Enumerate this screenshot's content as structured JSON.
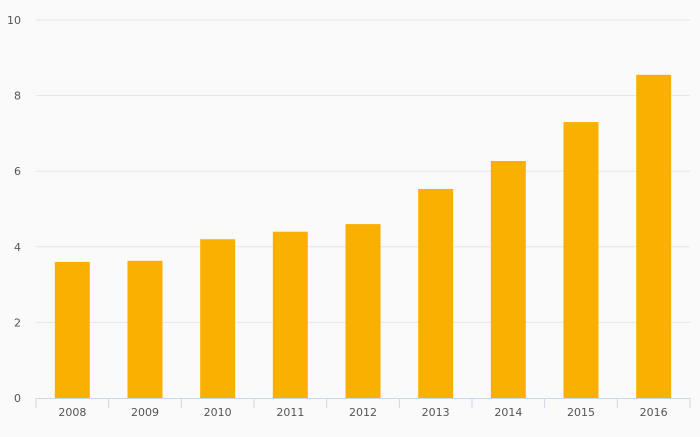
{
  "chart_data": {
    "type": "bar",
    "categories": [
      "2008",
      "2009",
      "2010",
      "2011",
      "2012",
      "2013",
      "2014",
      "2015",
      "2016"
    ],
    "values": [
      3.6,
      3.63,
      4.2,
      4.4,
      4.6,
      5.53,
      6.27,
      7.3,
      8.55
    ],
    "yticks": [
      "0",
      "2",
      "4",
      "6",
      "8",
      "10"
    ],
    "ylim": [
      0,
      10
    ],
    "title": "",
    "xlabel": "",
    "ylabel": "",
    "grid": true,
    "colors": {
      "bar": "#f9b000",
      "gridline": "#e6e6e6",
      "axis": "#ccd6eb",
      "background": "#fafafa",
      "tick_label": "#555555"
    }
  }
}
